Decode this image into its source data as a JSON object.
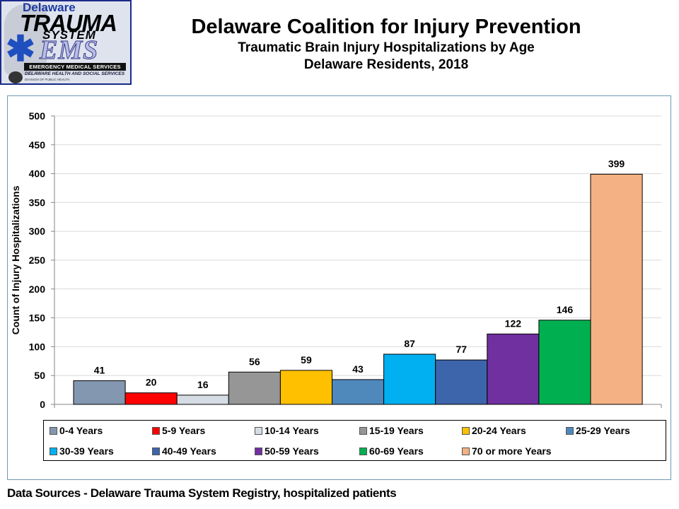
{
  "logo": {
    "delaware": "Delaware",
    "trauma": "TRAUMA",
    "system": "SYSTEM",
    "ems": "EMS",
    "emergency": "EMERGENCY MEDICAL SERVICES",
    "dhss": "DELAWARE HEALTH AND SOCIAL SERVICES",
    "dph": "DIVISION OF PUBLIC HEALTH"
  },
  "header": {
    "title": "Delaware Coalition for Injury Prevention",
    "subtitle1": "Traumatic Brain Injury Hospitalizations by Age",
    "subtitle2": "Delaware Residents, 2018"
  },
  "footer": {
    "source": "Data Sources - Delaware Trauma System Registry, hospitalized patients"
  },
  "chart_data": {
    "type": "bar",
    "title": "Traumatic Brain Injury Hospitalizations by Age",
    "xlabel": "",
    "ylabel": "Count of Injury Hospitalizations",
    "ylim": [
      0,
      500
    ],
    "yticks": [
      0,
      50,
      100,
      150,
      200,
      250,
      300,
      350,
      400,
      450,
      500
    ],
    "grid": true,
    "legend_position": "bottom",
    "categories": [
      "0-4 Years",
      "5-9 Years",
      "10-14 Years",
      "15-19 Years",
      "20-24 Years",
      "25-29 Years",
      "30-39 Years",
      "40-49 Years",
      "50-59 Years",
      "60-69 Years",
      "70 or more Years"
    ],
    "values": [
      41,
      20,
      16,
      56,
      59,
      43,
      87,
      77,
      122,
      146,
      399
    ],
    "colors": [
      "#8497b0",
      "#ff0000",
      "#d6dce4",
      "#969696",
      "#ffc000",
      "#4f88bb",
      "#00b0f0",
      "#3d65ab",
      "#7030a0",
      "#00b050",
      "#f4b183"
    ],
    "data_labels": [
      "41",
      "20",
      "16",
      "56",
      "59",
      "43",
      "87",
      "77",
      "122",
      "146",
      "399"
    ]
  }
}
